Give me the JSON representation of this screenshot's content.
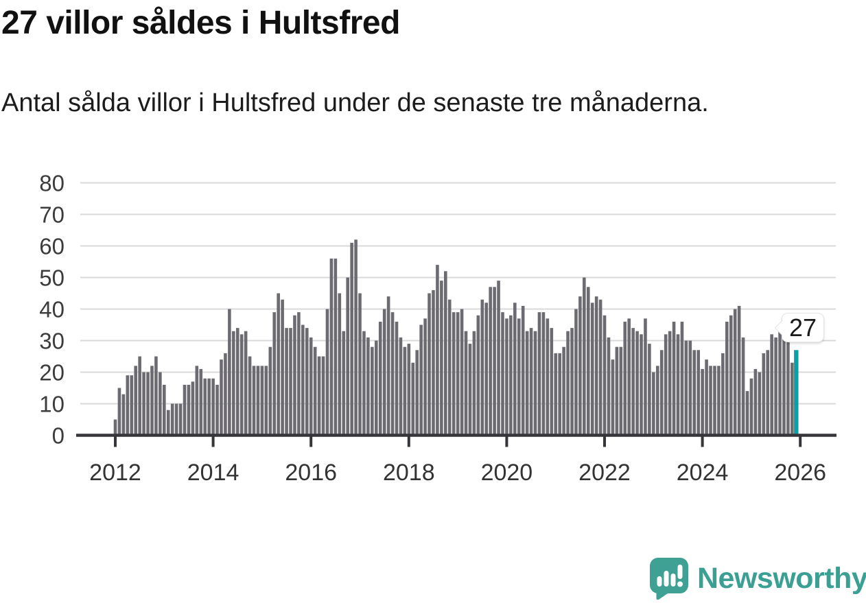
{
  "title": "27 villor såldes i Hultsfred",
  "subtitle": "Antal sålda villor i Hultsfred under de senaste tre månaderna.",
  "annotation": {
    "value": "27"
  },
  "logo": {
    "name": "Newsworthy"
  },
  "colors": {
    "bar": "#6c6b71",
    "highlight": "#0c9fa2",
    "grid": "#d9d9d9",
    "axis": "#36363a",
    "tick_label": "#3c3c3c",
    "title": "#111111",
    "logo": "#3ba093",
    "background": "#ffffff"
  },
  "chart_data": {
    "type": "bar",
    "title": "27 villor såldes i Hultsfred",
    "subtitle": "Antal sålda villor i Hultsfred under de senaste tre månaderna.",
    "xlabel": "",
    "ylabel": "",
    "ylim": [
      0,
      80
    ],
    "y_ticks": [
      0,
      10,
      20,
      30,
      40,
      50,
      60,
      70,
      80
    ],
    "x_tick_labels": [
      "2012",
      "2014",
      "2016",
      "2018",
      "2020",
      "2022",
      "2024",
      "2026"
    ],
    "bar_unit": "month",
    "x_range": "2012 to 2026",
    "grid": true,
    "legend": "none",
    "series": [
      {
        "name": "Antal sålda villor, rullande tre månader",
        "values": [
          5,
          15,
          13,
          19,
          19,
          22,
          25,
          20,
          20,
          22,
          25,
          20,
          16,
          8,
          10,
          10,
          10,
          16,
          16,
          17,
          22,
          21,
          18,
          18,
          18,
          16,
          24,
          26,
          40,
          33,
          34,
          32,
          33,
          25,
          22,
          22,
          22,
          22,
          28,
          39,
          45,
          43,
          34,
          34,
          38,
          39,
          35,
          34,
          31,
          28,
          25,
          25,
          40,
          56,
          56,
          45,
          33,
          50,
          61,
          62,
          45,
          33,
          31,
          28,
          30,
          36,
          40,
          44,
          39,
          36,
          31,
          28,
          29,
          23,
          27,
          35,
          37,
          45,
          46,
          54,
          49,
          52,
          43,
          39,
          39,
          40,
          33,
          29,
          33,
          38,
          43,
          42,
          47,
          47,
          49,
          39,
          37,
          38,
          42,
          37,
          41,
          33,
          34,
          33,
          39,
          39,
          37,
          34,
          26,
          26,
          28,
          33,
          34,
          40,
          44,
          50,
          47,
          42,
          44,
          43,
          38,
          31,
          24,
          28,
          28,
          36,
          37,
          34,
          33,
          32,
          37,
          29,
          20,
          22,
          27,
          32,
          33,
          36,
          32,
          36,
          30,
          30,
          27,
          27,
          21,
          24,
          22,
          22,
          22,
          26,
          36,
          38,
          40,
          41,
          31,
          14,
          18,
          21,
          20,
          26,
          27,
          32,
          31,
          33,
          32,
          30,
          23,
          27
        ]
      }
    ],
    "highlight": {
      "index": 167,
      "value": 27
    }
  }
}
